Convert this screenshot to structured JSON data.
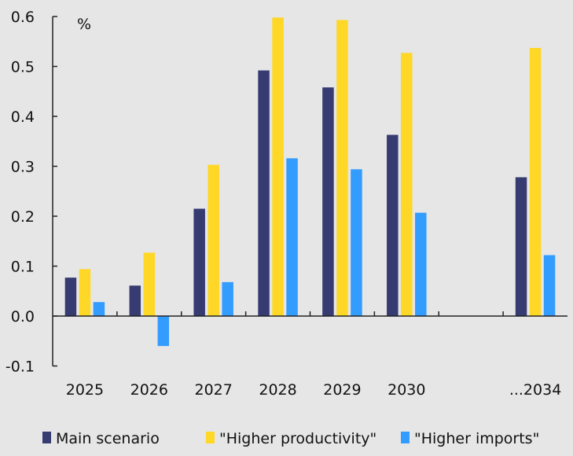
{
  "chart_data": {
    "type": "bar",
    "unit_label": "%",
    "categories": [
      "2025",
      "2026",
      "2027",
      "2028",
      "2029",
      "2030",
      "",
      "...2034"
    ],
    "series": [
      {
        "name": "Main scenario",
        "color": "#363b72",
        "values": [
          0.077,
          0.061,
          0.215,
          0.492,
          0.458,
          0.363,
          null,
          0.278
        ]
      },
      {
        "name": "\"Higher productivity\"",
        "color": "#ffd726",
        "values": [
          0.094,
          0.127,
          0.303,
          0.598,
          0.593,
          0.527,
          null,
          0.537
        ]
      },
      {
        "name": "\"Higher imports\"",
        "color": "#339cff",
        "values": [
          0.028,
          -0.06,
          0.068,
          0.316,
          0.294,
          0.207,
          null,
          0.122
        ]
      }
    ],
    "ylim": [
      -0.1,
      0.6
    ],
    "yticks": [
      "0.6",
      "0.5",
      "0.4",
      "0.3",
      "0.2",
      "0.1",
      "0.0",
      "-0.1"
    ],
    "ytick_values": [
      0.6,
      0.5,
      0.4,
      0.3,
      0.2,
      0.1,
      0.0,
      -0.1
    ],
    "legend_position": "bottom",
    "grid": false
  }
}
